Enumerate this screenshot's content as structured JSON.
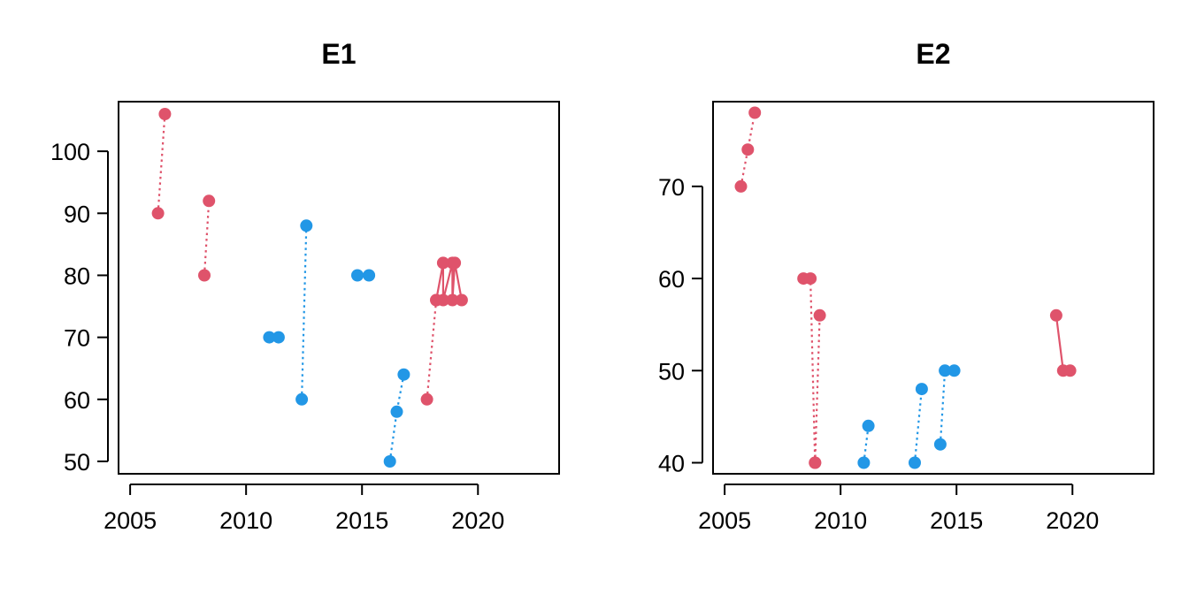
{
  "colors": {
    "red": "#DF536B",
    "blue": "#2297E6"
  },
  "chart_data": [
    {
      "type": "scatter",
      "title": "E1",
      "xlabel": "",
      "ylabel": "",
      "xlim": [
        2004.5,
        2023.5
      ],
      "ylim": [
        48,
        108
      ],
      "xticks": [
        2005,
        2010,
        2015,
        2020
      ],
      "yticks": [
        50,
        60,
        70,
        80,
        90,
        100
      ],
      "series": [
        {
          "color": "red",
          "line": "dotted",
          "points": [
            [
              2006.2,
              90
            ],
            [
              2006.5,
              106
            ]
          ]
        },
        {
          "color": "red",
          "line": "dotted",
          "points": [
            [
              2008.2,
              80
            ],
            [
              2008.4,
              92
            ]
          ]
        },
        {
          "color": "blue",
          "line": "solid",
          "points": [
            [
              2011.0,
              70
            ],
            [
              2011.4,
              70
            ]
          ]
        },
        {
          "color": "blue",
          "line": "dotted",
          "points": [
            [
              2012.4,
              60
            ],
            [
              2012.6,
              88
            ]
          ]
        },
        {
          "color": "blue",
          "line": "solid",
          "points": [
            [
              2014.8,
              80
            ],
            [
              2015.3,
              80
            ]
          ]
        },
        {
          "color": "blue",
          "line": "dotted",
          "points": [
            [
              2016.2,
              50
            ],
            [
              2016.5,
              58
            ],
            [
              2016.8,
              64
            ]
          ]
        },
        {
          "color": "red",
          "line": "dotted",
          "points": [
            [
              2017.8,
              60
            ],
            [
              2018.2,
              76
            ]
          ]
        },
        {
          "color": "red",
          "line": "solid",
          "points": [
            [
              2018.2,
              76
            ],
            [
              2018.5,
              82
            ],
            [
              2018.5,
              76
            ],
            [
              2018.9,
              82
            ],
            [
              2018.9,
              76
            ],
            [
              2019.0,
              82
            ],
            [
              2019.3,
              76
            ]
          ]
        }
      ]
    },
    {
      "type": "scatter",
      "title": "E2",
      "xlabel": "",
      "ylabel": "",
      "xlim": [
        2004.5,
        2023.5
      ],
      "ylim": [
        38.8,
        79.2
      ],
      "xticks": [
        2005,
        2010,
        2015,
        2020
      ],
      "yticks": [
        40,
        50,
        60,
        70
      ],
      "series": [
        {
          "color": "red",
          "line": "dotted",
          "points": [
            [
              2005.7,
              70
            ],
            [
              2006.0,
              74
            ],
            [
              2006.3,
              78
            ]
          ]
        },
        {
          "color": "red",
          "line": "dotted",
          "points": [
            [
              2008.4,
              60
            ],
            [
              2008.7,
              60
            ],
            [
              2008.9,
              40
            ]
          ]
        },
        {
          "color": "red",
          "line": "dotted",
          "points": [
            [
              2008.9,
              40
            ],
            [
              2009.1,
              56
            ]
          ]
        },
        {
          "color": "blue",
          "line": "dotted",
          "points": [
            [
              2011.0,
              40
            ],
            [
              2011.2,
              44
            ]
          ]
        },
        {
          "color": "blue",
          "line": "dotted",
          "points": [
            [
              2013.2,
              40
            ],
            [
              2013.5,
              48
            ]
          ]
        },
        {
          "color": "blue",
          "line": "dotted",
          "points": [
            [
              2014.3,
              42
            ],
            [
              2014.5,
              50
            ],
            [
              2014.9,
              50
            ]
          ]
        },
        {
          "color": "red",
          "line": "solid",
          "points": [
            [
              2019.3,
              56
            ],
            [
              2019.6,
              50
            ],
            [
              2019.9,
              50
            ]
          ]
        }
      ]
    }
  ]
}
